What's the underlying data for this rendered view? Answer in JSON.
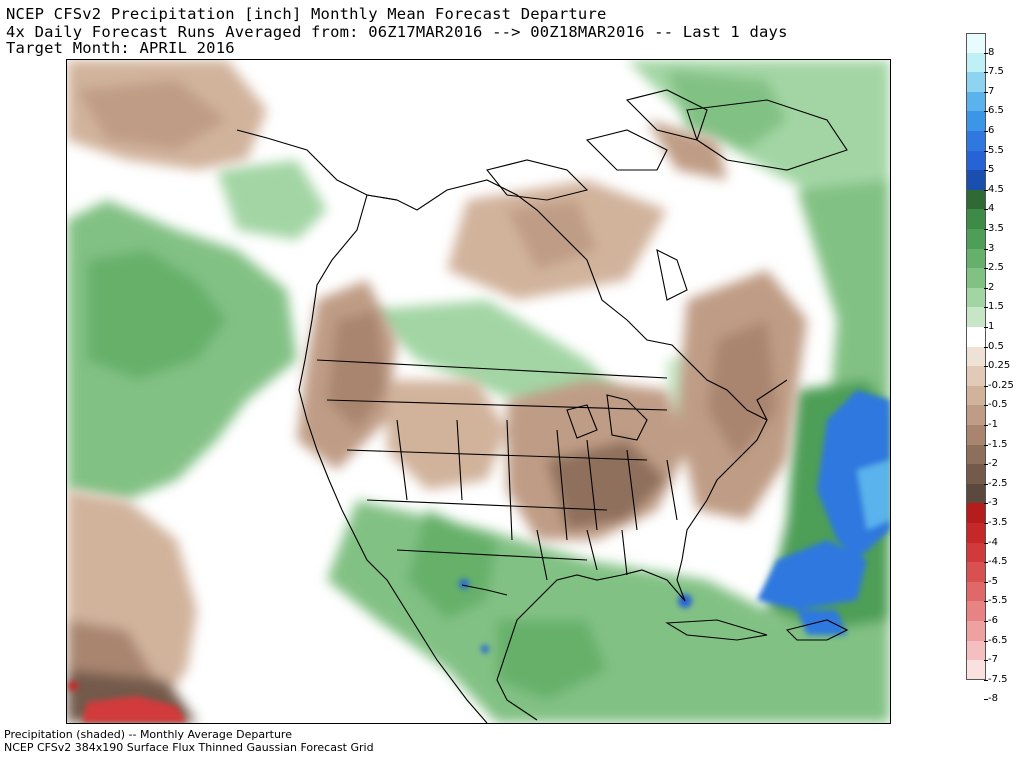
{
  "header": {
    "line1": "NCEP CFSv2 Precipitation [inch] Monthly Mean Forecast Departure",
    "line2": "4x Daily Forecast Runs Averaged from: 06Z17MAR2016 --> 00Z18MAR2016 -- Last 1 days",
    "line3": "Target Month: APRIL 2016"
  },
  "footer": {
    "line1": "Precipitation (shaded) -- Monthly Average Departure",
    "line2": "NCEP CFSv2 384x190 Surface Flux Thinned Gaussian Forecast Grid"
  },
  "legend": {
    "colors": [
      "#e8fbfd",
      "#bff0f6",
      "#8ed3f0",
      "#5ab3ec",
      "#3d95e8",
      "#2f78df",
      "#2563d6",
      "#1a4fb0",
      "#2f6a34",
      "#3e8b48",
      "#4e9e57",
      "#66b06b",
      "#82c184",
      "#a3d5a4",
      "#c6e6c6",
      "#ffffff",
      "#eee1d6",
      "#e1cbb8",
      "#d1b39c",
      "#bf9c85",
      "#a9856f",
      "#8e6f5c",
      "#735a4b",
      "#5c483d",
      "#b71c1c",
      "#c62828",
      "#d13a3a",
      "#d95050",
      "#e06868",
      "#e88383",
      "#efa0a0",
      "#f5bfbf",
      "#fbe0e0"
    ],
    "labels": [
      "8",
      "7.5",
      "7",
      "6.5",
      "6",
      "5.5",
      "5",
      "4.5",
      "4",
      "3.5",
      "3",
      "2.5",
      "2",
      "1.5",
      "1",
      "0.5",
      "0.25",
      "-0.25",
      "-0.5",
      "-1",
      "-1.5",
      "-2",
      "-2.5",
      "-3",
      "-3.5",
      "-4",
      "-4.5",
      "-5",
      "-5.5",
      "-6",
      "-6.5",
      "-7",
      "-7.5",
      "-8"
    ]
  }
}
